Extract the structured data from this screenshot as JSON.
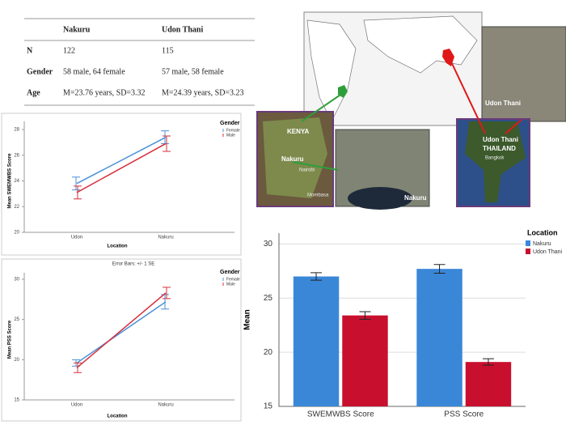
{
  "table": {
    "header": [
      "Nakuru",
      "Udon Thani"
    ],
    "rows": [
      [
        "N",
        "122",
        "115"
      ],
      [
        "Gender",
        "58 male, 64 female",
        "57 male, 58 female"
      ],
      [
        "Age",
        "M=23.76 years, SD=3.32",
        "M=24.39 years, SD=3.23"
      ]
    ]
  },
  "map": {
    "kenya": "KENYA",
    "nakuru": "Nakuru",
    "nairobi": "Nairobi",
    "mombasa": "Mombasa",
    "nakuru_inset": "Nakuru",
    "udon_inset": "Udon Thani",
    "udon": "Udon Thani",
    "thailand": "THAILAND",
    "bangkok": "Bangkok"
  },
  "chart_data": [
    {
      "type": "line",
      "xlabel": "Location",
      "ylabel": "Mean SWEMWBS Score",
      "legend_title": "Gender",
      "categories": [
        "Udon",
        "Nakuru"
      ],
      "ylim": [
        20,
        28
      ],
      "yticks": [
        20,
        22,
        24,
        26,
        28
      ],
      "series": [
        {
          "name": "Female",
          "color": "#4a90d9",
          "values": [
            23.8,
            27.4
          ],
          "errors": [
            0.5,
            0.5
          ]
        },
        {
          "name": "Male",
          "color": "#d6303c",
          "values": [
            23.1,
            26.9
          ],
          "errors": [
            0.5,
            0.6
          ]
        }
      ]
    },
    {
      "type": "line",
      "xlabel": "Location",
      "ylabel": "Mean PSS Score",
      "legend_title": "Gender",
      "annotation": "Error Bars: +/- 1 SE",
      "categories": [
        "Udon",
        "Nakuru"
      ],
      "ylim": [
        15,
        30
      ],
      "yticks": [
        15,
        20,
        25,
        30
      ],
      "series": [
        {
          "name": "Female",
          "color": "#4a90d9",
          "values": [
            19.6,
            27.2
          ],
          "errors": [
            0.4,
            0.9
          ]
        },
        {
          "name": "Male",
          "color": "#d6303c",
          "values": [
            19.0,
            28.3
          ],
          "errors": [
            0.6,
            0.7
          ]
        }
      ]
    },
    {
      "type": "bar",
      "ylabel": "Mean",
      "legend_title": "Location",
      "categories": [
        "SWEMWBS Score",
        "PSS Score"
      ],
      "ylim": [
        15,
        31
      ],
      "yticks": [
        15,
        20,
        25,
        30
      ],
      "grid": true,
      "series": [
        {
          "name": "Nakuru",
          "color": "#3a87d8",
          "values": [
            27.0,
            27.7
          ],
          "errors": [
            0.35,
            0.4
          ]
        },
        {
          "name": "Udon Thani",
          "color": "#c8102e",
          "values": [
            23.4,
            19.1
          ],
          "errors": [
            0.35,
            0.3
          ]
        }
      ]
    }
  ]
}
